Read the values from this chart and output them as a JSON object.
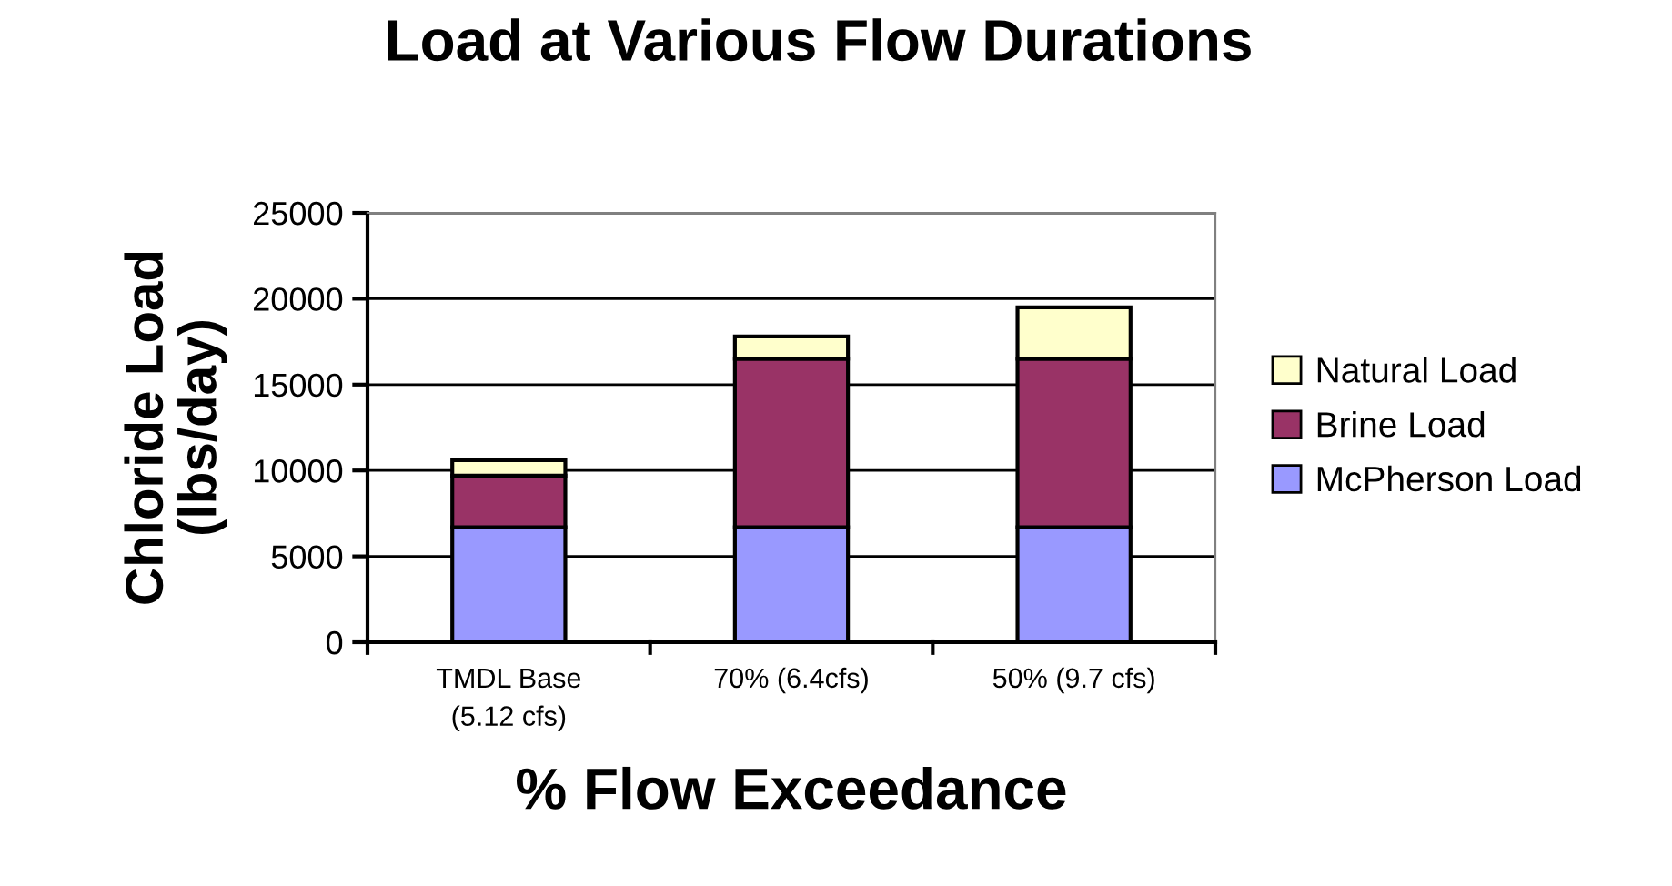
{
  "chart_data": {
    "type": "bar",
    "stacked": true,
    "title": "Load at Various Flow Durations",
    "xlabel": "% Flow Exceedance",
    "ylabel": "Chloride Load\n(lbs/day)",
    "categories": [
      "TMDL Base\n(5.12 cfs)",
      "70% (6.4cfs)",
      "50% (9.7 cfs)"
    ],
    "series": [
      {
        "name": "McPherson Load",
        "color": "#9999ff",
        "values": [
          6700,
          6700,
          6700
        ]
      },
      {
        "name": "Brine Load",
        "color": "#993366",
        "values": [
          3000,
          9800,
          9800
        ]
      },
      {
        "name": "Natural Load",
        "color": "#ffffcc",
        "values": [
          900,
          1300,
          3000
        ]
      }
    ],
    "ylim": [
      0,
      25000
    ],
    "yticks": [
      0,
      5000,
      10000,
      15000,
      20000,
      25000
    ],
    "grid": "y",
    "legend": "right"
  }
}
